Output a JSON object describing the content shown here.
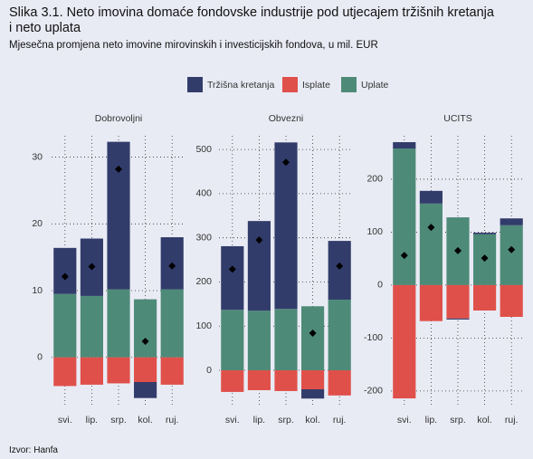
{
  "title": "Slika 3.1. Neto imovina domaće fondovske industrije pod utjecajem tržišnih kretanja i neto uplata",
  "subtitle": "Mjesečna promjena neto imovine mirovinskih i investicijskih fondova, u mil. EUR",
  "source": "Izvor: Hanfa",
  "chart_data": [
    {
      "type": "bar",
      "stacked": true,
      "title": "Dobrovoljni",
      "grid": true,
      "categories": [
        "svi.",
        "lip.",
        "srp.",
        "kol.",
        "ruj."
      ],
      "series": [
        {
          "name": "Tržišna kretanja",
          "color": "#323c6b",
          "values": [
            6.9,
            8.6,
            22.1,
            -2.4,
            7.8
          ]
        },
        {
          "name": "Isplate",
          "color": "#e0504a",
          "values": [
            -4.3,
            -4.1,
            -3.9,
            -3.7,
            -4.1
          ]
        },
        {
          "name": "Uplate",
          "color": "#4e8a78",
          "values": [
            9.5,
            9.2,
            10.2,
            8.7,
            10.2
          ]
        }
      ],
      "net": [
        12.1,
        13.6,
        28.2,
        2.4,
        13.7
      ],
      "ylim": [
        -7.5,
        33.2
      ],
      "yticks": [
        0,
        10,
        20,
        30
      ]
    },
    {
      "type": "bar",
      "stacked": true,
      "title": "Obvezni",
      "grid": true,
      "categories": [
        "svi.",
        "lip.",
        "srp.",
        "kol.",
        "ruj."
      ],
      "series": [
        {
          "name": "Tržišna kretanja",
          "color": "#323c6b",
          "values": [
            144,
            203,
            377,
            -21,
            133
          ]
        },
        {
          "name": "Isplate",
          "color": "#e0504a",
          "values": [
            -49,
            -45,
            -47,
            -43,
            -57
          ]
        },
        {
          "name": "Uplate",
          "color": "#4e8a78",
          "values": [
            137,
            135,
            139,
            145,
            160
          ]
        }
      ],
      "net": [
        229,
        295,
        471,
        84,
        236
      ],
      "ylim": [
        -84,
        531
      ],
      "yticks": [
        0,
        100,
        200,
        300,
        400,
        500
      ]
    },
    {
      "type": "bar",
      "stacked": true,
      "title": "UCITS",
      "grid": true,
      "categories": [
        "svi.",
        "lip.",
        "srp.",
        "kol.",
        "ruj."
      ],
      "series": [
        {
          "name": "Tržišna kretanja",
          "color": "#323c6b",
          "values": [
            12,
            24,
            -2,
            3,
            13
          ]
        },
        {
          "name": "Isplate",
          "color": "#e0504a",
          "values": [
            -214,
            -68,
            -63,
            -48,
            -60
          ]
        },
        {
          "name": "Uplate",
          "color": "#4e8a78",
          "values": [
            258,
            154,
            128,
            96,
            113
          ]
        }
      ],
      "net": [
        56,
        109,
        65,
        51,
        67
      ],
      "ylim": [
        -231,
        282
      ],
      "yticks": [
        -200,
        -100,
        0,
        100,
        200
      ]
    }
  ]
}
